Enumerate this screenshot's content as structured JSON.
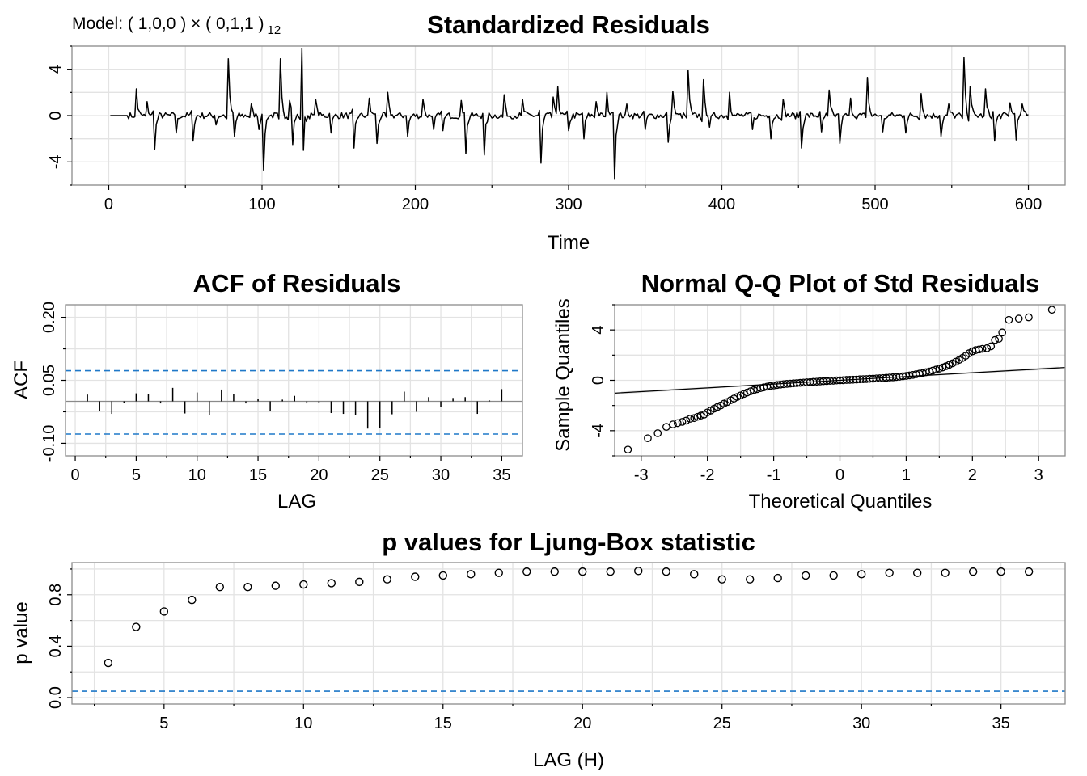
{
  "figure": {
    "model_label": "Model: ( 1,0,0 ) × ( 0,1,1 )",
    "model_period": "12",
    "colors": {
      "residual_line": "#000000",
      "confidence_band": "#1f78c8",
      "frame": "#8c8c8c",
      "grid": "#e3e3e3",
      "band": "#e6e6e6"
    }
  },
  "chart_data": [
    {
      "id": "residuals",
      "type": "line",
      "title": "Standardized Residuals",
      "xlabel": "Time",
      "ylabel": "",
      "xlim": [
        -24,
        624
      ],
      "ylim": [
        -6,
        6
      ],
      "xticks": [
        0,
        100,
        200,
        300,
        400,
        500,
        600
      ],
      "yticks": [
        -4,
        0,
        4
      ],
      "ytick_labels": [
        "-4",
        "0",
        "4"
      ],
      "grid": true,
      "n": 600,
      "spikes": [
        {
          "x": 18,
          "y": 2.3
        },
        {
          "x": 25,
          "y": 1.2
        },
        {
          "x": 30,
          "y": -2.9
        },
        {
          "x": 44,
          "y": -1.5
        },
        {
          "x": 55,
          "y": -2.2
        },
        {
          "x": 70,
          "y": -0.8
        },
        {
          "x": 78,
          "y": 4.9
        },
        {
          "x": 82,
          "y": -1.8
        },
        {
          "x": 93,
          "y": 1.0
        },
        {
          "x": 98,
          "y": -1.2
        },
        {
          "x": 101,
          "y": -4.7
        },
        {
          "x": 112,
          "y": 4.9
        },
        {
          "x": 118,
          "y": 1.3
        },
        {
          "x": 120,
          "y": -2.5
        },
        {
          "x": 126,
          "y": 5.5
        },
        {
          "x": 127,
          "y": -3.0
        },
        {
          "x": 135,
          "y": 1.4
        },
        {
          "x": 145,
          "y": -1.5
        },
        {
          "x": 160,
          "y": -2.8
        },
        {
          "x": 170,
          "y": 1.5
        },
        {
          "x": 175,
          "y": -2.4
        },
        {
          "x": 182,
          "y": 2.0
        },
        {
          "x": 195,
          "y": -1.8
        },
        {
          "x": 205,
          "y": 1.4
        },
        {
          "x": 212,
          "y": -1.2
        },
        {
          "x": 218,
          "y": -1.3
        },
        {
          "x": 230,
          "y": 1.3
        },
        {
          "x": 233,
          "y": -3.3
        },
        {
          "x": 245,
          "y": -3.4
        },
        {
          "x": 258,
          "y": 1.8
        },
        {
          "x": 270,
          "y": 1.4
        },
        {
          "x": 282,
          "y": -4.1
        },
        {
          "x": 290,
          "y": 1.6
        },
        {
          "x": 293,
          "y": 2.5
        },
        {
          "x": 300,
          "y": -1.3
        },
        {
          "x": 310,
          "y": -2.0
        },
        {
          "x": 318,
          "y": 1.2
        },
        {
          "x": 325,
          "y": 2.0
        },
        {
          "x": 330,
          "y": -5.5
        },
        {
          "x": 338,
          "y": 1.0
        },
        {
          "x": 350,
          "y": -1.2
        },
        {
          "x": 365,
          "y": -2.3
        },
        {
          "x": 368,
          "y": 2.1
        },
        {
          "x": 378,
          "y": 3.9
        },
        {
          "x": 388,
          "y": 3.1
        },
        {
          "x": 392,
          "y": -1.0
        },
        {
          "x": 405,
          "y": 2.0
        },
        {
          "x": 420,
          "y": -1.2
        },
        {
          "x": 432,
          "y": -2.0
        },
        {
          "x": 440,
          "y": 1.4
        },
        {
          "x": 452,
          "y": -2.8
        },
        {
          "x": 465,
          "y": -1.4
        },
        {
          "x": 470,
          "y": 2.2
        },
        {
          "x": 477,
          "y": -2.4
        },
        {
          "x": 484,
          "y": 1.5
        },
        {
          "x": 495,
          "y": 3.3
        },
        {
          "x": 505,
          "y": -1.4
        },
        {
          "x": 520,
          "y": -1.5
        },
        {
          "x": 530,
          "y": 1.9
        },
        {
          "x": 543,
          "y": -1.8
        },
        {
          "x": 548,
          "y": 1.0
        },
        {
          "x": 558,
          "y": 5.0
        },
        {
          "x": 562,
          "y": 2.5
        },
        {
          "x": 572,
          "y": 2.3
        },
        {
          "x": 578,
          "y": -2.2
        },
        {
          "x": 588,
          "y": 1.1
        },
        {
          "x": 592,
          "y": -2.1
        },
        {
          "x": 596,
          "y": 1.0
        }
      ]
    },
    {
      "id": "acf",
      "type": "bar",
      "title": "ACF of Residuals",
      "xlabel": "LAG",
      "ylabel": "ACF",
      "xlim": [
        -0.8,
        36.7
      ],
      "ylim": [
        -0.13,
        0.23
      ],
      "xticks": [
        0,
        5,
        10,
        15,
        20,
        25,
        30,
        35
      ],
      "yticks": [
        -0.1,
        0.05,
        0.2
      ],
      "ytick_labels": [
        "-0.10",
        "0.05",
        "0.20"
      ],
      "grid": true,
      "lags": [
        1,
        2,
        3,
        4,
        5,
        6,
        7,
        8,
        9,
        10,
        11,
        12,
        13,
        14,
        15,
        16,
        17,
        18,
        19,
        20,
        21,
        22,
        23,
        24,
        25,
        26,
        27,
        28,
        29,
        30,
        31,
        32,
        33,
        34,
        35
      ],
      "values": [
        0.016,
        -0.024,
        -0.03,
        -0.004,
        0.019,
        0.017,
        -0.005,
        0.032,
        -0.029,
        0.021,
        -0.033,
        0.028,
        0.017,
        -0.005,
        0.006,
        -0.024,
        0.004,
        0.013,
        -0.005,
        -0.003,
        -0.028,
        -0.03,
        -0.032,
        -0.065,
        -0.064,
        -0.031,
        0.023,
        -0.025,
        0.01,
        -0.013,
        0.008,
        0.01,
        -0.03,
        0.002,
        0.029
      ],
      "conf_limits": [
        0.073,
        -0.078
      ]
    },
    {
      "id": "qq",
      "type": "scatter",
      "title": "Normal Q-Q Plot of Std Residuals",
      "xlabel": "Theoretical Quantiles",
      "ylabel": "Sample Quantiles",
      "xlim": [
        -3.4,
        3.4
      ],
      "ylim": [
        -6,
        6
      ],
      "xticks": [
        -3,
        -2,
        -1,
        0,
        1,
        2,
        3
      ],
      "yticks": [
        -4,
        0,
        4
      ],
      "ytick_labels": [
        "-4",
        "0",
        "4"
      ],
      "grid": true,
      "reference_line": {
        "intercept": 0.0,
        "slope": 0.3
      },
      "points": [
        [
          -3.2,
          -5.5
        ],
        [
          -2.9,
          -4.6
        ],
        [
          -2.75,
          -4.2
        ],
        [
          -2.62,
          -3.7
        ],
        [
          -2.52,
          -3.5
        ],
        [
          -2.45,
          -3.4
        ],
        [
          -2.38,
          -3.3
        ],
        [
          -2.32,
          -3.2
        ],
        [
          -2.26,
          -3.05
        ],
        [
          -2.2,
          -3.0
        ],
        [
          -2.15,
          -2.9
        ],
        [
          -2.1,
          -2.8
        ],
        [
          -2.05,
          -2.72
        ],
        [
          -2.0,
          -2.55
        ],
        [
          -1.95,
          -2.4
        ],
        [
          -1.9,
          -2.25
        ],
        [
          -1.85,
          -2.12
        ],
        [
          -1.8,
          -2.0
        ],
        [
          -1.75,
          -1.85
        ],
        [
          -1.7,
          -1.72
        ],
        [
          -1.65,
          -1.58
        ],
        [
          -1.6,
          -1.45
        ],
        [
          -1.55,
          -1.32
        ],
        [
          -1.5,
          -1.2
        ],
        [
          -1.45,
          -1.08
        ],
        [
          -1.4,
          -0.97
        ],
        [
          -1.35,
          -0.87
        ],
        [
          -1.3,
          -0.78
        ],
        [
          -1.25,
          -0.7
        ],
        [
          -1.2,
          -0.62
        ],
        [
          -1.15,
          -0.56
        ],
        [
          -1.1,
          -0.5
        ],
        [
          -1.05,
          -0.45
        ],
        [
          -1.0,
          -0.41
        ],
        [
          -0.95,
          -0.37
        ],
        [
          -0.9,
          -0.34
        ],
        [
          -0.85,
          -0.31
        ],
        [
          -0.8,
          -0.28
        ],
        [
          -0.75,
          -0.26
        ],
        [
          -0.7,
          -0.24
        ],
        [
          -0.65,
          -0.22
        ],
        [
          -0.6,
          -0.2
        ],
        [
          -0.55,
          -0.18
        ],
        [
          -0.5,
          -0.16
        ],
        [
          -0.45,
          -0.14
        ],
        [
          -0.4,
          -0.12
        ],
        [
          -0.35,
          -0.11
        ],
        [
          -0.3,
          -0.09
        ],
        [
          -0.25,
          -0.07
        ],
        [
          -0.2,
          -0.06
        ],
        [
          -0.15,
          -0.04
        ],
        [
          -0.1,
          -0.03
        ],
        [
          -0.05,
          -0.01
        ],
        [
          0.0,
          0.0
        ],
        [
          0.05,
          0.01
        ],
        [
          0.1,
          0.03
        ],
        [
          0.15,
          0.04
        ],
        [
          0.2,
          0.05
        ],
        [
          0.25,
          0.06
        ],
        [
          0.3,
          0.08
        ],
        [
          0.35,
          0.09
        ],
        [
          0.4,
          0.1
        ],
        [
          0.45,
          0.12
        ],
        [
          0.5,
          0.13
        ],
        [
          0.55,
          0.15
        ],
        [
          0.6,
          0.16
        ],
        [
          0.65,
          0.18
        ],
        [
          0.7,
          0.2
        ],
        [
          0.75,
          0.22
        ],
        [
          0.8,
          0.24
        ],
        [
          0.85,
          0.26
        ],
        [
          0.9,
          0.29
        ],
        [
          0.95,
          0.32
        ],
        [
          1.0,
          0.35
        ],
        [
          1.05,
          0.39
        ],
        [
          1.1,
          0.43
        ],
        [
          1.15,
          0.48
        ],
        [
          1.2,
          0.53
        ],
        [
          1.25,
          0.58
        ],
        [
          1.3,
          0.64
        ],
        [
          1.35,
          0.7
        ],
        [
          1.4,
          0.77
        ],
        [
          1.45,
          0.85
        ],
        [
          1.5,
          0.93
        ],
        [
          1.55,
          1.02
        ],
        [
          1.6,
          1.12
        ],
        [
          1.65,
          1.23
        ],
        [
          1.7,
          1.35
        ],
        [
          1.75,
          1.48
        ],
        [
          1.8,
          1.62
        ],
        [
          1.85,
          1.78
        ],
        [
          1.9,
          1.95
        ],
        [
          1.95,
          2.15
        ],
        [
          2.0,
          2.3
        ],
        [
          2.05,
          2.4
        ],
        [
          2.1,
          2.45
        ],
        [
          2.15,
          2.5
        ],
        [
          2.22,
          2.55
        ],
        [
          2.28,
          2.7
        ],
        [
          2.34,
          3.2
        ],
        [
          2.4,
          3.3
        ],
        [
          2.45,
          3.8
        ],
        [
          2.55,
          4.8
        ],
        [
          2.7,
          4.9
        ],
        [
          2.85,
          5.0
        ],
        [
          3.2,
          5.6
        ]
      ]
    },
    {
      "id": "ljungbox",
      "type": "scatter",
      "title": "p values for Ljung-Box statistic",
      "xlabel": "LAG (H)",
      "ylabel": "p value",
      "xlim": [
        1.7,
        37.3
      ],
      "ylim": [
        -0.05,
        1.05
      ],
      "xticks": [
        5,
        10,
        15,
        20,
        25,
        30,
        35
      ],
      "yticks": [
        0.0,
        0.4,
        0.8
      ],
      "ytick_labels": [
        "0.0",
        "0.4",
        "0.8"
      ],
      "grid": true,
      "x": [
        3,
        4,
        5,
        6,
        7,
        8,
        9,
        10,
        11,
        12,
        13,
        14,
        15,
        16,
        17,
        18,
        19,
        20,
        21,
        22,
        23,
        24,
        25,
        26,
        27,
        28,
        29,
        30,
        31,
        32,
        33,
        34,
        35,
        36
      ],
      "y": [
        0.27,
        0.55,
        0.67,
        0.76,
        0.86,
        0.86,
        0.87,
        0.88,
        0.89,
        0.9,
        0.92,
        0.94,
        0.95,
        0.96,
        0.97,
        0.98,
        0.98,
        0.98,
        0.98,
        0.985,
        0.98,
        0.96,
        0.92,
        0.92,
        0.93,
        0.95,
        0.95,
        0.96,
        0.97,
        0.97,
        0.97,
        0.98,
        0.98,
        0.98
      ],
      "significance_level": 0.05
    }
  ]
}
